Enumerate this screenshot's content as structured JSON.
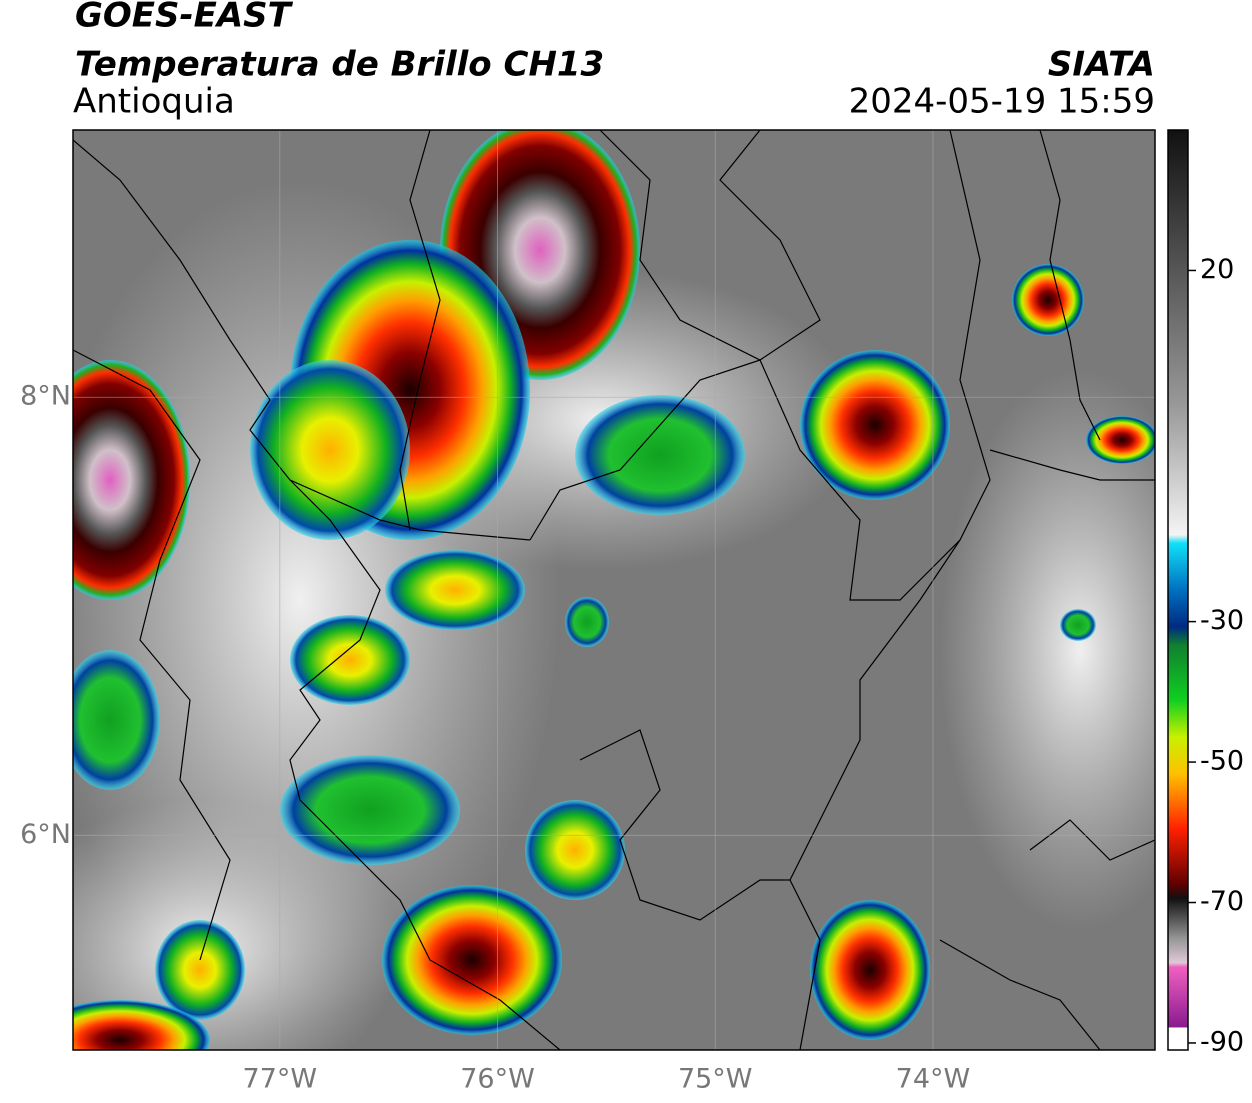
{
  "header": {
    "title": "GOES-EAST",
    "subtitle": "Temperatura de Brillo CH13",
    "region": "Antioquia",
    "source": "SIATA",
    "datetime": "2024-05-19 15:59"
  },
  "map": {
    "xlim": [
      -77.95,
      -72.98
    ],
    "ylim": [
      5.02,
      9.22
    ],
    "xticks": [
      {
        "value": -77,
        "label": "77°W"
      },
      {
        "value": -76,
        "label": "76°W"
      },
      {
        "value": -75,
        "label": "75°W"
      },
      {
        "value": -74,
        "label": "74°W"
      }
    ],
    "yticks": [
      {
        "value": 8,
        "label": "8°N"
      },
      {
        "value": 6,
        "label": "6°N"
      }
    ],
    "grid": true
  },
  "colorbar": {
    "lim": [
      -91,
      40
    ],
    "ticks": [
      20,
      -30,
      -50,
      -70,
      -90
    ]
  }
}
